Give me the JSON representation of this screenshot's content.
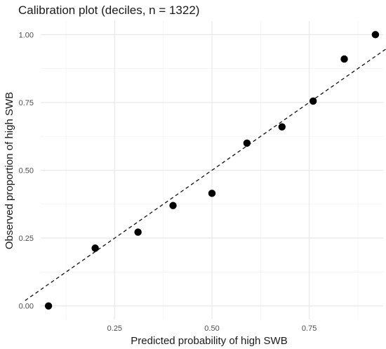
{
  "chart_data": {
    "type": "scatter",
    "title": "Calibration plot (deciles, n = 1322)",
    "xlabel": "Predicted probability of high SWB",
    "ylabel": "Observed proportion of high SWB",
    "xlim": [
      0.06,
      0.94
    ],
    "ylim": [
      -0.05,
      1.05
    ],
    "x_ticks": [
      0.25,
      0.5,
      0.75
    ],
    "x_tick_labels": [
      "0.25",
      "0.50",
      "0.75"
    ],
    "y_ticks": [
      0.0,
      0.25,
      0.5,
      0.75,
      1.0
    ],
    "y_tick_labels": [
      "0.00",
      "0.25",
      "0.50",
      "0.75",
      "1.00"
    ],
    "grid": true,
    "reference_line": {
      "style": "dashed",
      "slope": 1,
      "intercept": 0
    },
    "points": [
      {
        "x": 0.08,
        "y": 0.0
      },
      {
        "x": 0.2,
        "y": 0.213
      },
      {
        "x": 0.31,
        "y": 0.272
      },
      {
        "x": 0.4,
        "y": 0.37
      },
      {
        "x": 0.5,
        "y": 0.415
      },
      {
        "x": 0.59,
        "y": 0.6
      },
      {
        "x": 0.68,
        "y": 0.66
      },
      {
        "x": 0.76,
        "y": 0.755
      },
      {
        "x": 0.84,
        "y": 0.91
      },
      {
        "x": 0.92,
        "y": 1.0
      }
    ]
  }
}
